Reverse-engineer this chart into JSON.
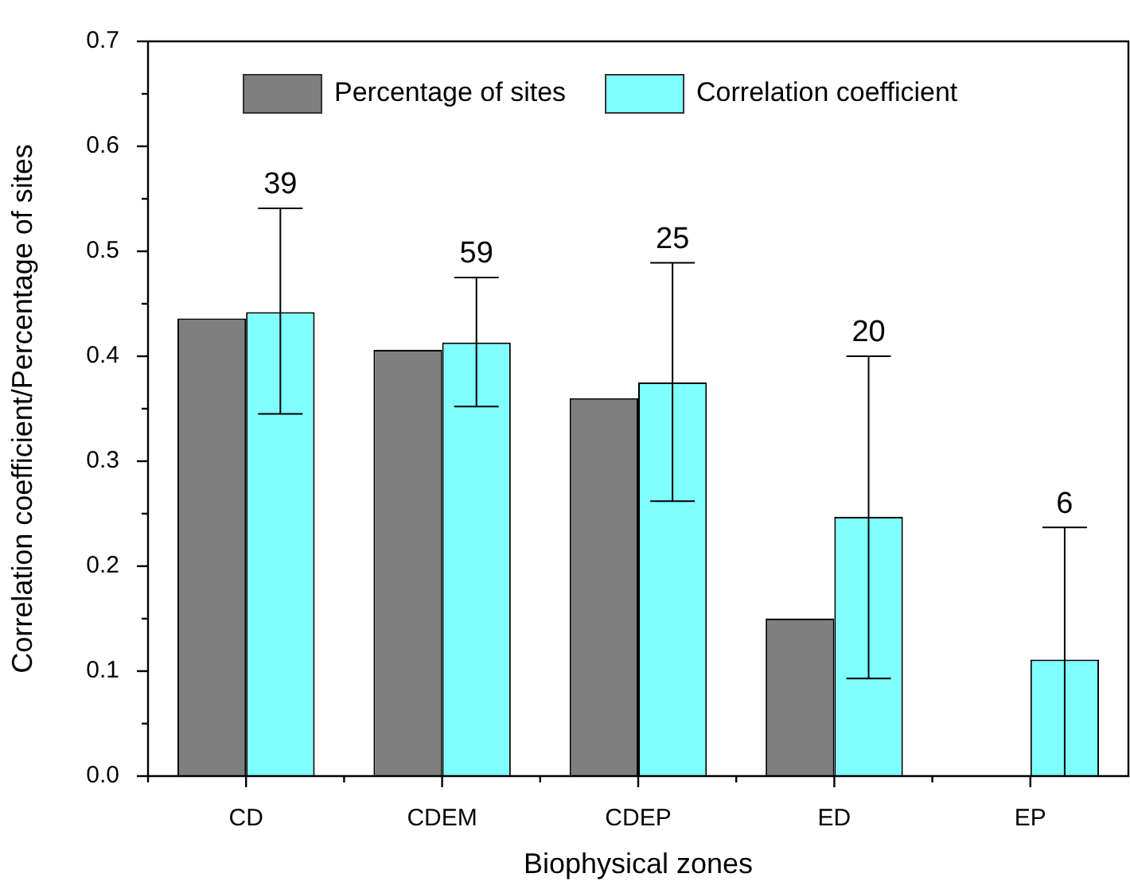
{
  "chart_data": {
    "type": "bar",
    "xlabel": "Biophysical zones",
    "ylabel": "Correlation coefficient/Percentage of sites",
    "categories": [
      "CD",
      "CDEM",
      "CDEP",
      "ED",
      "EP"
    ],
    "series": [
      {
        "name": "Percentage of sites",
        "color": "#7f7f7f",
        "values": [
          0.436,
          0.406,
          0.36,
          0.15,
          0
        ]
      },
      {
        "name": "Correlation coefficient",
        "color": "#80ffff",
        "values": [
          0.442,
          0.413,
          0.375,
          0.247,
          0.111
        ],
        "errors": [
          [
            0.345,
            0.541
          ],
          [
            0.352,
            0.475
          ],
          [
            0.262,
            0.489
          ],
          [
            0.093,
            0.4
          ],
          [
            0,
            0.237
          ]
        ]
      }
    ],
    "ylim": [
      0,
      0.7
    ],
    "yticks": [
      {
        "value": 0,
        "label": "0.0"
      },
      {
        "value": 0.1,
        "label": "0.1"
      },
      {
        "value": 0.2,
        "label": "0.2"
      },
      {
        "value": 0.3,
        "label": "0.3"
      },
      {
        "value": 0.4,
        "label": "0.4"
      },
      {
        "value": 0.5,
        "label": "0.5"
      },
      {
        "value": 0.6,
        "label": "0.6"
      },
      {
        "value": 0.7,
        "label": "0.7"
      }
    ],
    "annotations": [
      "39",
      "59",
      "25",
      "20",
      "6"
    ],
    "legend": "top",
    "grid": false
  }
}
